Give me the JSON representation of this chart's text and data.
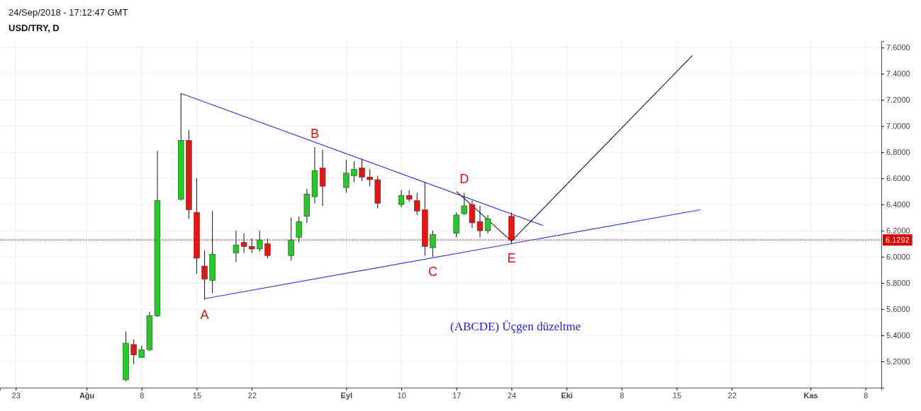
{
  "chart_data": {
    "type": "candlestick",
    "title": "USD/TRY, D",
    "subtitle": "24/Sep/2018 - 17:12:47 GMT",
    "x": [
      "2018-08-06",
      "2018-08-07",
      "2018-08-08",
      "2018-08-09",
      "2018-08-10",
      "2018-08-13",
      "2018-08-14",
      "2018-08-15",
      "2018-08-16",
      "2018-08-17",
      "2018-08-20",
      "2018-08-21",
      "2018-08-22",
      "2018-08-23",
      "2018-08-24",
      "2018-08-27",
      "2018-08-28",
      "2018-08-29",
      "2018-08-30",
      "2018-08-31",
      "2018-09-03",
      "2018-09-04",
      "2018-09-05",
      "2018-09-06",
      "2018-09-07",
      "2018-09-10",
      "2018-09-11",
      "2018-09-12",
      "2018-09-13",
      "2018-09-14",
      "2018-09-17",
      "2018-09-18",
      "2018-09-19",
      "2018-09-20",
      "2018-09-21",
      "2018-09-24"
    ],
    "ohlc": [
      [
        5.06,
        5.43,
        5.05,
        5.34
      ],
      [
        5.33,
        5.37,
        5.18,
        5.25
      ],
      [
        5.23,
        5.32,
        5.23,
        5.29
      ],
      [
        5.29,
        5.58,
        5.28,
        5.55
      ],
      [
        5.55,
        6.81,
        5.54,
        6.43
      ],
      [
        6.44,
        7.25,
        6.43,
        6.89
      ],
      [
        6.89,
        6.97,
        6.29,
        6.36
      ],
      [
        6.34,
        6.6,
        5.87,
        5.99
      ],
      [
        5.93,
        6.05,
        5.67,
        5.83
      ],
      [
        5.82,
        6.35,
        5.72,
        6.02
      ],
      [
        6.03,
        6.2,
        5.96,
        6.09
      ],
      [
        6.11,
        6.18,
        6.03,
        6.08
      ],
      [
        6.08,
        6.14,
        6.03,
        6.06
      ],
      [
        6.06,
        6.2,
        6.04,
        6.13
      ],
      [
        6.1,
        6.14,
        5.99,
        6.01
      ],
      [
        6.01,
        6.3,
        5.97,
        6.13
      ],
      [
        6.15,
        6.31,
        6.11,
        6.27
      ],
      [
        6.31,
        6.52,
        6.26,
        6.48
      ],
      [
        6.46,
        6.84,
        6.41,
        6.66
      ],
      [
        6.68,
        6.82,
        6.39,
        6.54
      ],
      [
        6.53,
        6.74,
        6.49,
        6.64
      ],
      [
        6.62,
        6.73,
        6.57,
        6.67
      ],
      [
        6.68,
        6.75,
        6.58,
        6.61
      ],
      [
        6.61,
        6.67,
        6.54,
        6.59
      ],
      [
        6.59,
        6.62,
        6.37,
        6.41
      ],
      [
        6.4,
        6.51,
        6.38,
        6.47
      ],
      [
        6.47,
        6.51,
        6.42,
        6.44
      ],
      [
        6.43,
        6.49,
        6.32,
        6.35
      ],
      [
        6.36,
        6.57,
        6.01,
        6.08
      ],
      [
        6.07,
        6.2,
        6.0,
        6.17
      ],
      [
        6.18,
        6.34,
        6.15,
        6.32
      ],
      [
        6.33,
        6.49,
        6.32,
        6.39
      ],
      [
        6.4,
        6.43,
        6.22,
        6.26
      ],
      [
        6.27,
        6.39,
        6.15,
        6.2
      ],
      [
        6.2,
        6.32,
        6.18,
        6.29
      ],
      [
        6.31,
        6.34,
        6.1,
        6.13
      ]
    ],
    "colors": [
      "#22cc22",
      "#ee1111",
      "#22cc22",
      "#22cc22",
      "#22cc22",
      "#22cc22",
      "#ee1111",
      "#ee1111",
      "#ee1111",
      "#22cc22",
      "#22cc22",
      "#ee1111",
      "#ee1111",
      "#22cc22",
      "#ee1111",
      "#22cc22",
      "#22cc22",
      "#22cc22",
      "#22cc22",
      "#ee1111",
      "#22cc22",
      "#22cc22",
      "#ee1111",
      "#ee1111",
      "#ee1111",
      "#22cc22",
      "#ee1111",
      "#ee1111",
      "#ee1111",
      "#22cc22",
      "#22cc22",
      "#22cc22",
      "#ee1111",
      "#ee1111",
      "#22cc22",
      "#ee1111"
    ],
    "series": [
      {
        "type": "line",
        "color": "#3333dd",
        "x": [
          "2018-08-13",
          "2018-09-28"
        ],
        "values": [
          7.25,
          6.24
        ]
      },
      {
        "type": "line",
        "color": "#3333dd",
        "x": [
          "2018-08-16",
          "2018-10-18"
        ],
        "values": [
          5.68,
          6.36
        ]
      },
      {
        "type": "line",
        "color": "#222222",
        "x": [
          "2018-09-17",
          "2018-09-24",
          "2018-10-17"
        ],
        "values": [
          6.5,
          6.12,
          7.54
        ]
      }
    ],
    "xlim": [
      "2018-07-21",
      "2018-11-10"
    ],
    "xticks": [
      {
        "value": "2018-07-23",
        "label": "23"
      },
      {
        "value": "2018-08-01",
        "label": "Ağu"
      },
      {
        "value": "2018-08-08",
        "label": "8"
      },
      {
        "value": "2018-08-15",
        "label": "15"
      },
      {
        "value": "2018-08-22",
        "label": "22"
      },
      {
        "value": "2018-09-03",
        "label": "Eyl"
      },
      {
        "value": "2018-09-10",
        "label": "10"
      },
      {
        "value": "2018-09-17",
        "label": "17"
      },
      {
        "value": "2018-09-24",
        "label": "24"
      },
      {
        "value": "2018-10-01",
        "label": "Eki"
      },
      {
        "value": "2018-10-08",
        "label": "8"
      },
      {
        "value": "2018-10-15",
        "label": "15"
      },
      {
        "value": "2018-10-22",
        "label": "22"
      },
      {
        "value": "2018-11-01",
        "label": "Kas"
      },
      {
        "value": "2018-11-08",
        "label": "8"
      }
    ],
    "ylim": [
      5.0,
      7.65
    ],
    "yticks": [
      {
        "value": 5.2,
        "label": "5.2000"
      },
      {
        "value": 5.4,
        "label": "5.4000"
      },
      {
        "value": 5.6,
        "label": "5.6000"
      },
      {
        "value": 5.8,
        "label": "5.8000"
      },
      {
        "value": 6.0,
        "label": "6.0000"
      },
      {
        "value": 6.2,
        "label": "6.2000"
      },
      {
        "value": 6.4,
        "label": "6.4000"
      },
      {
        "value": 6.6,
        "label": "6.6000"
      },
      {
        "value": 6.8,
        "label": "6.8000"
      },
      {
        "value": 7.0,
        "label": "7.0000"
      },
      {
        "value": 7.2,
        "label": "7.2000"
      },
      {
        "value": 7.4,
        "label": "7.4000"
      },
      {
        "value": 7.6,
        "label": "7.6000"
      }
    ],
    "ref_lines": [
      {
        "axis": "y",
        "value": 6.1292,
        "label": "6.1292",
        "color": "#dd0000",
        "line_style": "dotted"
      }
    ],
    "annotations": [
      {
        "text": "A",
        "x": "2018-08-16",
        "y": 5.67
      },
      {
        "text": "B",
        "x": "2018-08-30",
        "y": 6.84
      },
      {
        "text": "C",
        "x": "2018-09-14",
        "y": 6.0
      },
      {
        "text": "D",
        "x": "2018-09-18",
        "y": 6.49
      },
      {
        "text": "E",
        "x": "2018-09-24",
        "y": 6.1
      },
      "(ABCDE) Üçgen düzeltme"
    ],
    "grid": true
  }
}
